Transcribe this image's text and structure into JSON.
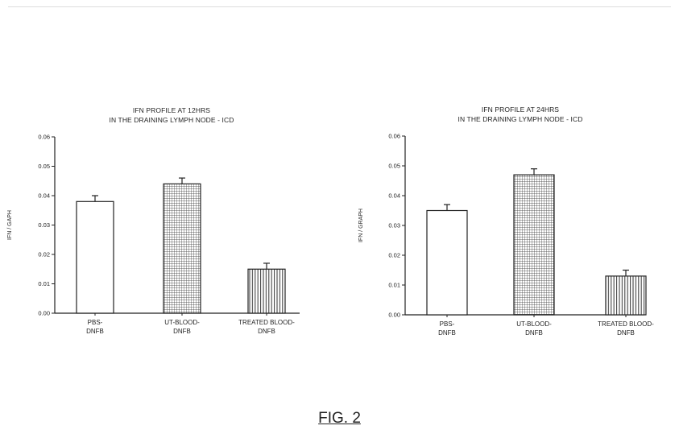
{
  "figure": {
    "caption": "FIG. 2"
  },
  "chart_data": [
    {
      "type": "bar",
      "title": "IFN PROFILE AT 12HRS",
      "subtitle": "IN THE DRAINING LYMPH NODE - ICD",
      "ylabel": "IFN / GAPH",
      "categories": [
        [
          "PBS-",
          "DNFB"
        ],
        [
          "UT-BLOOD-",
          "DNFB"
        ],
        [
          "TREATED BLOOD-",
          "DNFB"
        ]
      ],
      "values": [
        0.038,
        0.044,
        0.015
      ],
      "errors": [
        0.002,
        0.002,
        0.002
      ],
      "fills": [
        "empty",
        "grid",
        "vertical-lines"
      ],
      "ylim": [
        0,
        0.06
      ],
      "yticks": [
        "0.00",
        "0.01",
        "0.02",
        "0.03",
        "0.04",
        "0.05",
        "0.06"
      ],
      "grid": false
    },
    {
      "type": "bar",
      "title": "IFN PROFILE AT 24HRS",
      "subtitle": "IN THE DRAINING LYMPH NODE - ICD",
      "ylabel": "IFN / GRAPH",
      "categories": [
        [
          "PBS-",
          "DNFB"
        ],
        [
          "UT-BLOOD-",
          "DNFB"
        ],
        [
          "TREATED BLOOD-",
          "DNFB"
        ]
      ],
      "values": [
        0.035,
        0.047,
        0.013
      ],
      "errors": [
        0.002,
        0.002,
        0.002
      ],
      "fills": [
        "empty",
        "grid",
        "vertical-lines"
      ],
      "ylim": [
        0,
        0.06
      ],
      "yticks": [
        "0.00",
        "0.01",
        "0.02",
        "0.03",
        "0.04",
        "0.05",
        "0.06"
      ],
      "grid": false
    }
  ]
}
